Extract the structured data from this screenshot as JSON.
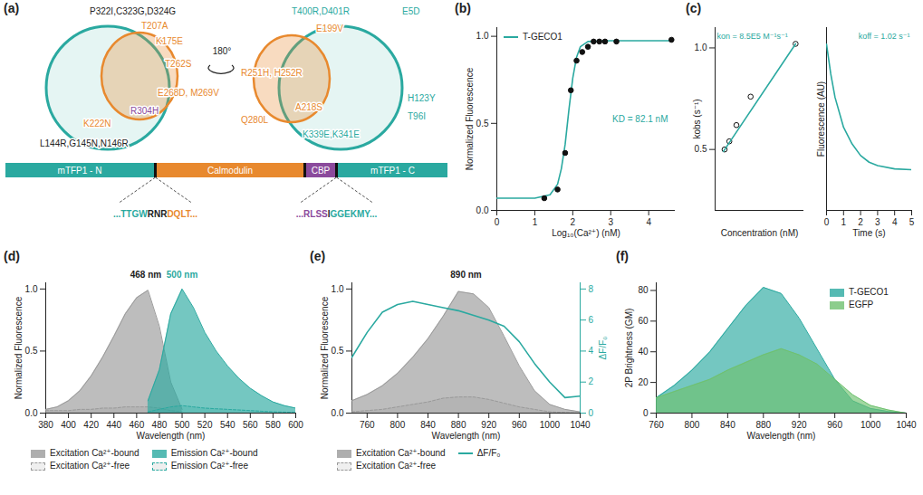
{
  "diagram": {
    "panel": "(a)",
    "rotation_label": "180°",
    "mutations": [
      {
        "text": "P322I,C323G,D324G",
        "color": "#222222"
      },
      {
        "text": "T207A",
        "color": "#e8892e"
      },
      {
        "text": "K175E",
        "color": "#e8892e"
      },
      {
        "text": "T262S",
        "color": "#e8892e"
      },
      {
        "text": "E268D, M269V",
        "color": "#e8892e"
      },
      {
        "text": "R304H",
        "color": "#8b4a9c"
      },
      {
        "text": "K222N",
        "color": "#e8892e"
      },
      {
        "text": "L144R,G145N,N146R",
        "color": "#222222"
      },
      {
        "text": "T400R,D401R",
        "color": "#2aa9a0"
      },
      {
        "text": "E5D",
        "color": "#2aa9a0"
      },
      {
        "text": "E199V",
        "color": "#e8892e"
      },
      {
        "text": "R251H, H252R",
        "color": "#e8892e"
      },
      {
        "text": "A218S",
        "color": "#e8892e"
      },
      {
        "text": "Q280L",
        "color": "#e8892e"
      },
      {
        "text": "K339E,K341E",
        "color": "#2aa9a0"
      },
      {
        "text": "H123Y",
        "color": "#2aa9a0"
      },
      {
        "text": "T96I",
        "color": "#2aa9a0"
      }
    ],
    "domains": [
      {
        "label": "mTFP1 - N",
        "color": "#2aa9a0"
      },
      {
        "label": "Calmodulin",
        "color": "#e8892e"
      },
      {
        "label": "CBP",
        "color": "#8b4a9c"
      },
      {
        "label": "mTFP1 - C",
        "color": "#2aa9a0"
      }
    ],
    "junctions": [
      [
        {
          "text": "...TTGW",
          "color": "#2aa9a0"
        },
        {
          "text": "RNR",
          "color": "#222222"
        },
        {
          "text": "DQLT...",
          "color": "#e8892e"
        }
      ],
      [
        {
          "text": "...RLSS",
          "color": "#8b4a9c"
        },
        {
          "text": "I",
          "color": "#222222"
        },
        {
          "text": "GGEKMY...",
          "color": "#2aa9a0"
        }
      ]
    ]
  },
  "chart_data": [
    {
      "panel": "(b)",
      "type": "scatter",
      "x_label": "Log₁₀(Ca²⁺) (nM)",
      "y_label": "Normalized Fluorescence",
      "xlim": [
        0,
        4.7
      ],
      "xticks": [
        0,
        1,
        2,
        3,
        4
      ],
      "ylim": [
        0,
        1.05
      ],
      "yticks": [
        {
          "value": 0,
          "label": "0.0"
        },
        {
          "value": 0.5,
          "label": "0.5"
        },
        {
          "value": 1,
          "label": "1.0"
        }
      ],
      "annotation": "KD = 82.1 nM",
      "legend": "top-left",
      "series": [
        {
          "name": "T-GECO1",
          "type": "line",
          "color": "#2aa9a0",
          "x": [
            0,
            1.0,
            1.4,
            1.6,
            1.7,
            1.8,
            1.9,
            2.0,
            2.1,
            2.2,
            2.4,
            3.0,
            4.6
          ],
          "values": [
            0.07,
            0.07,
            0.09,
            0.15,
            0.24,
            0.38,
            0.58,
            0.76,
            0.88,
            0.94,
            0.97,
            0.975,
            0.975
          ]
        },
        {
          "type": "scatter",
          "color": "#111111",
          "marker": "circle",
          "x": [
            1.25,
            1.6,
            1.8,
            1.95,
            2.1,
            2.25,
            2.4,
            2.55,
            2.7,
            2.85,
            3.15,
            4.6
          ],
          "values": [
            0.07,
            0.12,
            0.33,
            0.69,
            0.86,
            0.91,
            0.94,
            0.97,
            0.97,
            0.97,
            0.97,
            0.98
          ]
        }
      ]
    },
    {
      "panel": "(c)",
      "type": "scatter",
      "x_label": "Concentration (nM)",
      "y_label": "kobs (s⁻¹)",
      "xlim": [
        0,
        750
      ],
      "ylim": [
        0.2,
        1.1
      ],
      "yticks": [
        {
          "value": 0.5,
          "label": "0.5"
        },
        {
          "value": 1,
          "label": "1.0"
        }
      ],
      "tick_labels": "y",
      "annotation": "kon = 8.5E5 M⁻¹s⁻¹",
      "series": [
        {
          "type": "scatter",
          "color": "#111111",
          "marker": "circle-open",
          "x": [
            80,
            120,
            180,
            300,
            680
          ],
          "values": [
            0.5,
            0.54,
            0.62,
            0.76,
            1.02
          ]
        },
        {
          "type": "line",
          "color": "#2aa9a0",
          "x": [
            70,
            680
          ],
          "values": [
            0.49,
            1.02
          ]
        }
      ]
    },
    {
      "type": "line",
      "x_label": "Time (s)",
      "y_label": "Fluorescence (AU)",
      "xlim": [
        0,
        5
      ],
      "xticks": [
        0,
        1,
        2,
        3,
        4,
        5
      ],
      "ylim": [
        0,
        1.1
      ],
      "tick_labels": "x",
      "annotation": "koff = 1.02 s⁻¹",
      "series": [
        {
          "type": "line",
          "color": "#2aa9a0",
          "x": [
            0,
            0.25,
            0.5,
            1,
            1.5,
            2,
            2.5,
            3,
            4,
            5
          ],
          "values": [
            1.0,
            0.82,
            0.68,
            0.5,
            0.4,
            0.33,
            0.29,
            0.27,
            0.25,
            0.245
          ]
        }
      ]
    },
    {
      "panel": "(d)",
      "type": "area",
      "x_label": "Wavelength (nm)",
      "y_label": "Normalized Fluorescence",
      "xlim": [
        380,
        600
      ],
      "xticks": [
        380,
        400,
        420,
        440,
        460,
        480,
        500,
        520,
        540,
        560,
        580,
        600
      ],
      "ylim": [
        0,
        1.05
      ],
      "yticks": [
        {
          "value": 0,
          "label": "0.0"
        },
        {
          "value": 0.5,
          "label": "0.5"
        },
        {
          "value": 1,
          "label": "1.0"
        }
      ],
      "legend": "bottom",
      "annotations": [
        {
          "text": "468 nm",
          "x": 468,
          "color": "#222222"
        },
        {
          "text": "500 nm",
          "x": 500,
          "color": "#2aa9a0"
        }
      ],
      "x": [
        380,
        390,
        400,
        410,
        420,
        430,
        440,
        450,
        460,
        470,
        480,
        490,
        500,
        510,
        520,
        530,
        540,
        550,
        560,
        570,
        580,
        590,
        600
      ],
      "series": [
        {
          "name": "Excitation Ca²⁺-bound",
          "color": "#9a9a9a",
          "line_style": "solid",
          "values": [
            0.03,
            0.05,
            0.1,
            0.18,
            0.3,
            0.45,
            0.62,
            0.8,
            0.93,
            0.99,
            0.7,
            0.25,
            0.03,
            null,
            null,
            null,
            null,
            null,
            null,
            null,
            null,
            null,
            null
          ]
        },
        {
          "name": "Excitation Ca²⁺-free",
          "color": "#9a9a9a",
          "line_style": "dashed",
          "values": [
            0.02,
            0.02,
            0.02,
            0.03,
            0.03,
            0.04,
            0.04,
            0.05,
            0.05,
            0.05,
            0.04,
            0.02,
            0.01,
            null,
            null,
            null,
            null,
            null,
            null,
            null,
            null,
            null,
            null
          ]
        },
        {
          "name": "Emission Ca²⁺-bound",
          "color": "#2aa9a0",
          "line_style": "solid",
          "values": [
            null,
            null,
            null,
            null,
            null,
            null,
            null,
            null,
            null,
            0.1,
            0.35,
            0.8,
            1.0,
            0.85,
            0.65,
            0.5,
            0.38,
            0.28,
            0.2,
            0.14,
            0.09,
            0.06,
            0.04
          ]
        },
        {
          "name": "Emission Ca²⁺-free",
          "color": "#2aa9a0",
          "line_style": "dashed",
          "values": [
            null,
            null,
            null,
            null,
            null,
            null,
            null,
            null,
            null,
            0.01,
            0.03,
            0.05,
            0.06,
            0.05,
            0.04,
            0.035,
            0.03,
            0.025,
            0.02,
            0.015,
            0.01,
            0.008,
            0.005
          ]
        }
      ]
    },
    {
      "panel": "(e)",
      "type": "area",
      "x_label": "Wavelength (nm)",
      "y_label": "Normalized Fluorescence",
      "y2_label": "ΔF/F₀",
      "xlim": [
        740,
        1040
      ],
      "xticks": [
        760,
        800,
        840,
        880,
        920,
        960,
        1000,
        1040
      ],
      "ylim": [
        0,
        1.05
      ],
      "yticks": [
        {
          "value": 0,
          "label": "0.0"
        },
        {
          "value": 0.5,
          "label": "0.5"
        },
        {
          "value": 1,
          "label": "1.0"
        }
      ],
      "y2lim": [
        0,
        8.4
      ],
      "y2ticks": [
        0,
        2,
        4,
        6,
        8
      ],
      "legend": "bottom",
      "annotations": [
        {
          "text": "890 nm",
          "x": 890,
          "color": "#222222"
        }
      ],
      "x": [
        740,
        760,
        780,
        800,
        820,
        840,
        860,
        880,
        900,
        920,
        940,
        960,
        980,
        1000,
        1020,
        1040
      ],
      "series": [
        {
          "name": "Excitation Ca²⁺-bound",
          "color": "#9a9a9a",
          "line_style": "solid",
          "values": [
            0.1,
            0.15,
            0.22,
            0.32,
            0.45,
            0.6,
            0.78,
            0.98,
            0.96,
            0.85,
            0.62,
            0.38,
            0.18,
            0.07,
            0.03,
            0.01
          ]
        },
        {
          "name": "Excitation Ca²⁺-free",
          "color": "#9a9a9a",
          "line_style": "dashed",
          "values": [
            0.01,
            0.02,
            0.03,
            0.05,
            0.07,
            0.09,
            0.12,
            0.13,
            0.13,
            0.11,
            0.08,
            0.05,
            0.03,
            0.01,
            0.005,
            0
          ]
        },
        {
          "name": "ΔF/F₀",
          "type": "line",
          "axis": "y2",
          "color": "#2aa9a0",
          "values": [
            3.6,
            5.2,
            6.5,
            7.0,
            7.2,
            7.0,
            6.8,
            6.6,
            6.3,
            6.0,
            5.6,
            4.6,
            3.2,
            2.0,
            1.0,
            1.1
          ]
        }
      ]
    },
    {
      "panel": "(f)",
      "type": "area",
      "x_label": "Wavelength (nm)",
      "y_label": "2P Brightness (GM)",
      "xlim": [
        760,
        1040
      ],
      "xticks": [
        760,
        800,
        840,
        880,
        920,
        960,
        1000,
        1040
      ],
      "ylim": [
        0,
        85
      ],
      "yticks": [
        0,
        20,
        40,
        60,
        80
      ],
      "legend": "top-right",
      "x": [
        760,
        780,
        800,
        820,
        840,
        860,
        880,
        900,
        920,
        940,
        960,
        980,
        1000,
        1020,
        1040
      ],
      "series": [
        {
          "name": "T-GECO1",
          "color": "#2aa9a0",
          "values": [
            10,
            18,
            28,
            40,
            55,
            70,
            82,
            78,
            62,
            42,
            22,
            8,
            3,
            1,
            0
          ]
        },
        {
          "name": "EGFP",
          "color": "#6fc16f",
          "values": [
            10,
            14,
            18,
            22,
            28,
            33,
            38,
            42,
            38,
            32,
            22,
            12,
            5,
            2,
            0
          ]
        }
      ]
    }
  ]
}
